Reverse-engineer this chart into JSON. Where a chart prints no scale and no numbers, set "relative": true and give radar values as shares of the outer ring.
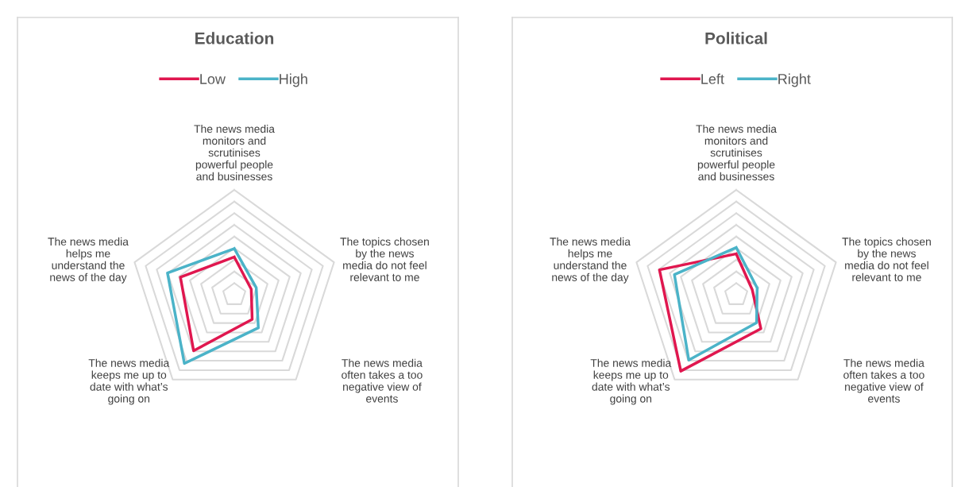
{
  "chart_data": [
    {
      "type": "radar",
      "title": "Education",
      "relative": true,
      "legend": "top",
      "categories": [
        "The news media\nmonitors and\nscrutinises\npowerful people\nand businesses",
        "The topics chosen\nby the news\nmedia do not feel\nrelevant to me",
        "The news media\noften takes a too\nnegative view of\nevents",
        "The news media\nkeeps me up to\ndate with what’s\ngoing on",
        "The news media\nhelps me\nunderstand the\nnews of the day"
      ],
      "series": [
        {
          "name": "Low",
          "color": "#e0174f",
          "values": [
            0.36,
            0.17,
            0.29,
            0.66,
            0.54
          ]
        },
        {
          "name": "High",
          "color": "#4bb3c8",
          "values": [
            0.44,
            0.22,
            0.39,
            0.81,
            0.67
          ]
        }
      ]
    },
    {
      "type": "radar",
      "title": "Political",
      "relative": true,
      "legend": "top",
      "categories": [
        "The news media\nmonitors and\nscrutinises\npowerful people\nand businesses",
        "The topics chosen\nby the news\nmedia do not feel\nrelevant to me",
        "The news media\noften takes a too\nnegative view of\nevents",
        "The news media\nkeeps me up to\ndate with what’s\ngoing on",
        "The news media\nhelps me\nunderstand the\nnews of the day"
      ],
      "series": [
        {
          "name": "Left",
          "color": "#e0174f",
          "values": [
            0.39,
            0.16,
            0.4,
            0.9,
            0.77
          ]
        },
        {
          "name": "Right",
          "color": "#4bb3c8",
          "values": [
            0.45,
            0.21,
            0.33,
            0.77,
            0.62
          ]
        }
      ]
    }
  ]
}
